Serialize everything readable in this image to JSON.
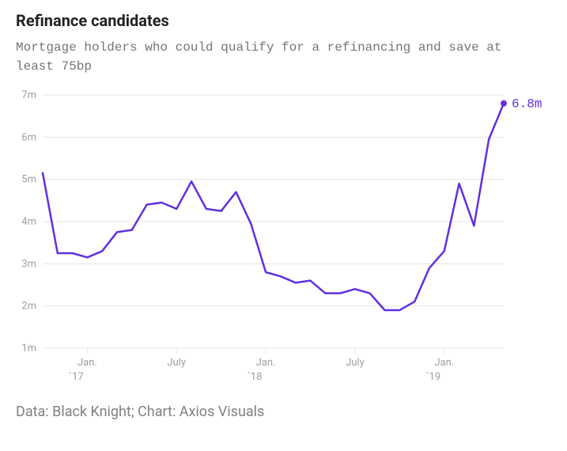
{
  "title": "Refinance candidates",
  "subtitle": "Mortgage holders who could qualify for a refinancing and save at least 75bp",
  "footer": "Data: Black Knight; Chart: Axios Visuals",
  "chart": {
    "type": "line",
    "background_color": "#ffffff",
    "grid_color": "#e5e5e5",
    "axis_label_color": "#9e9e9e",
    "line_color": "#6030e0",
    "line_width": 2.5,
    "end_marker_radius": 4,
    "end_label": "6.8m",
    "end_label_color": "#6030e0",
    "title_fontsize": 20,
    "subtitle_fontsize": 16,
    "footer_fontsize": 18,
    "ylim": [
      1,
      7
    ],
    "ytick_step": 1,
    "ytick_labels": [
      "1m",
      "2m",
      "3m",
      "4m",
      "5m",
      "6m",
      "7m"
    ],
    "x_ticks": [
      {
        "x": 3,
        "top": "Jan.",
        "bottom": "`17"
      },
      {
        "x": 9,
        "top": "July",
        "bottom": ""
      },
      {
        "x": 15,
        "top": "Jan.",
        "bottom": "`18"
      },
      {
        "x": 21,
        "top": "July",
        "bottom": ""
      },
      {
        "x": 27,
        "top": "Jan.",
        "bottom": "`19"
      }
    ],
    "series": {
      "x": [
        0,
        1,
        2,
        3,
        4,
        5,
        6,
        7,
        8,
        9,
        10,
        11,
        12,
        13,
        14,
        15,
        16,
        17,
        18,
        19,
        20,
        21,
        22,
        23,
        24,
        25,
        26,
        27,
        28,
        29,
        30,
        31
      ],
      "y": [
        5.15,
        3.25,
        3.25,
        3.15,
        3.3,
        3.75,
        3.8,
        4.4,
        4.45,
        4.3,
        4.95,
        4.3,
        4.25,
        4.7,
        3.95,
        2.8,
        2.7,
        2.55,
        2.6,
        2.3,
        2.3,
        2.4,
        2.3,
        1.9,
        1.9,
        2.1,
        2.9,
        3.3,
        4.9,
        3.9,
        5.95,
        6.8
      ]
    }
  }
}
